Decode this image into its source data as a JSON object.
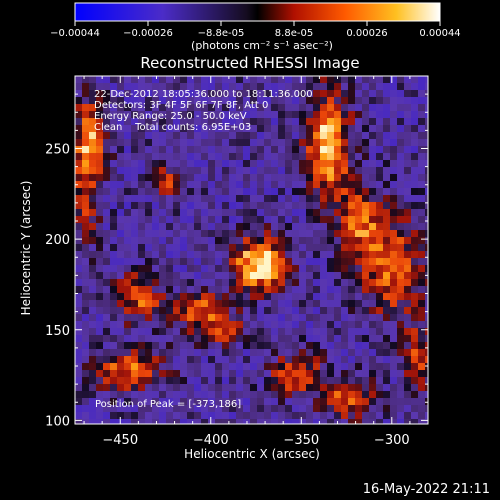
{
  "colorbar": {
    "ticks": [
      "-0.00044",
      "-0.00026",
      "-8.8e-05",
      "8.8e-05",
      "0.00026",
      "0.00044"
    ],
    "unit_label": "(photons cm⁻² s⁻¹ asec⁻²)"
  },
  "info_lines": [
    "22-Dec-2012 18:05:36.000 to 18:11:36.000",
    "Detectors: 3F 4F 5F 6F 7F 8F, Att 0",
    "Energy Range: 25.0 - 50.0 keV",
    "Clean    Total counts: 6.95E+03"
  ],
  "peak_text": "Position of Peak = [-373,186]",
  "timestamp": "16-May-2022 21:11",
  "chart_data": {
    "type": "heatmap",
    "title": "Reconstructed RHESSI Image",
    "xlabel": "Heliocentric X (arcsec)",
    "ylabel": "Heliocentric Y (arcsec)",
    "xlim": [
      -475,
      -280
    ],
    "ylim": [
      98,
      290
    ],
    "x_ticks": [
      -450,
      -400,
      -350,
      -300
    ],
    "y_ticks": [
      100,
      150,
      200,
      250
    ],
    "x_tick_labels": [
      "−450",
      "−400",
      "−350",
      "−300"
    ],
    "y_tick_labels": [
      "100",
      "150",
      "200",
      "250"
    ],
    "color_range": [
      -0.00044,
      0.00044
    ],
    "peak_position": [
      -373,
      186
    ],
    "sources": [
      {
        "x": -373,
        "y": 186,
        "sx": 10,
        "sy": 10,
        "amp": 1.0
      },
      {
        "x": -335,
        "y": 252,
        "sx": 8,
        "sy": 20,
        "amp": 0.9
      },
      {
        "x": -466,
        "y": 255,
        "sx": 6,
        "sy": 15,
        "amp": 0.8
      },
      {
        "x": -408,
        "y": 162,
        "sx": 12,
        "sy": 6,
        "amp": 0.55
      },
      {
        "x": -440,
        "y": 168,
        "sx": 8,
        "sy": 10,
        "amp": 0.55
      },
      {
        "x": -445,
        "y": 128,
        "sx": 14,
        "sy": 8,
        "amp": 0.6
      },
      {
        "x": -395,
        "y": 150,
        "sx": 10,
        "sy": 6,
        "amp": 0.5
      },
      {
        "x": -425,
        "y": 232,
        "sx": 6,
        "sy": 6,
        "amp": 0.5
      },
      {
        "x": -300,
        "y": 185,
        "sx": 12,
        "sy": 20,
        "amp": 0.6
      },
      {
        "x": -318,
        "y": 210,
        "sx": 8,
        "sy": 14,
        "amp": 0.55
      },
      {
        "x": -352,
        "y": 125,
        "sx": 10,
        "sy": 8,
        "amp": 0.6
      },
      {
        "x": -323,
        "y": 112,
        "sx": 10,
        "sy": 8,
        "amp": 0.6
      },
      {
        "x": -285,
        "y": 135,
        "sx": 6,
        "sy": 12,
        "amp": 0.5
      },
      {
        "x": -470,
        "y": 220,
        "sx": 6,
        "sy": 18,
        "amp": 0.4
      }
    ]
  }
}
